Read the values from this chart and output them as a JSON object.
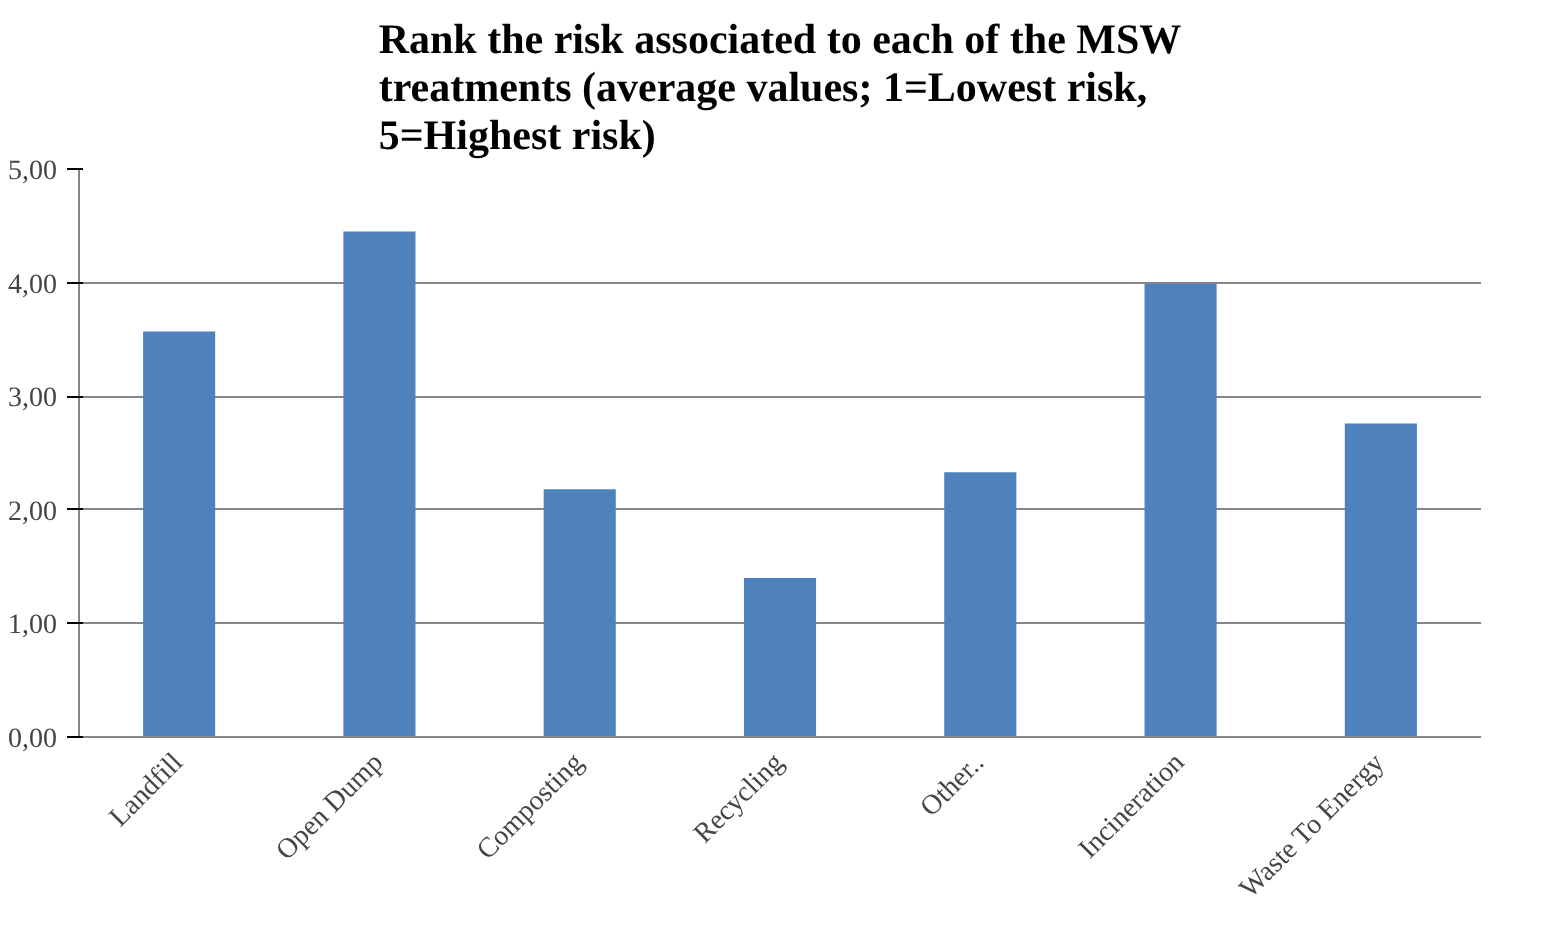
{
  "chart_data": {
    "type": "bar",
    "title": "Rank the risk associated to each of the MSW treatments (average values; 1=Lowest risk, 5=Highest risk)",
    "categories": [
      "Landfill",
      "Open Dump",
      "Composting",
      "Recycling",
      "Other..",
      "Incineration",
      "Waste To Energy"
    ],
    "values": [
      3.57,
      4.45,
      2.18,
      1.4,
      2.33,
      3.99,
      2.76
    ],
    "color": "#4f81bd",
    "ylim": [
      0,
      5
    ],
    "yticks": [
      {
        "value": 0,
        "label": "0,00"
      },
      {
        "value": 1,
        "label": "1,00"
      },
      {
        "value": 2,
        "label": "2,00"
      },
      {
        "value": 3,
        "label": "3,00"
      },
      {
        "value": 4,
        "label": "4,00"
      },
      {
        "value": 5,
        "label": "5,00"
      }
    ],
    "grid": "y"
  }
}
